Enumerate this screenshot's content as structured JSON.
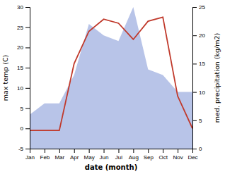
{
  "chart_data": {
    "type": "line",
    "categories": [
      "Jan",
      "Feb",
      "Mar",
      "Apr",
      "May",
      "Jun",
      "Jul",
      "Aug",
      "Sep",
      "Oct",
      "Nov",
      "Dec"
    ],
    "series": [
      {
        "type": "area",
        "axis": "y2",
        "color": "#b8c4e8",
        "values": [
          6.0,
          8.0,
          8.0,
          13.0,
          22.0,
          20.0,
          19.0,
          25.0,
          14.0,
          13.0,
          10.0,
          10.0
        ]
      },
      {
        "type": "line",
        "color": "#c0392b",
        "values": [
          -0.5,
          -0.5,
          -0.5,
          16.0,
          24.0,
          27.0,
          26.0,
          22.0,
          26.5,
          27.5,
          8.0,
          0.0
        ]
      }
    ],
    "xlabel": "date (month)",
    "ylabel": "max temp (C)",
    "y2label": "med. precipitation (kg/m2)",
    "ylim": [
      -5,
      30
    ],
    "yticks": [
      -5,
      0,
      5,
      10,
      15,
      20,
      25,
      30
    ],
    "y2lim": [
      0,
      25
    ],
    "y2ticks": [
      0,
      5,
      10,
      15,
      20,
      25
    ],
    "grid": false
  }
}
